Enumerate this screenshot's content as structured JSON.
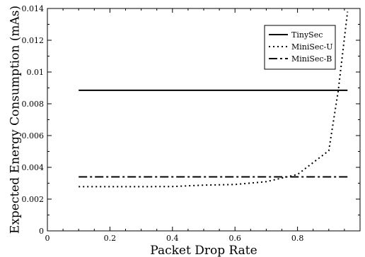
{
  "chart_data": {
    "type": "line",
    "title": "",
    "xlabel": "Packet Drop Rate",
    "ylabel": "Expected Energy Consumption (mAs)",
    "xlim": [
      0,
      1
    ],
    "ylim": [
      0,
      0.014
    ],
    "x_ticks": [
      0,
      0.2,
      0.4,
      0.6,
      0.8
    ],
    "x_tick_labels": [
      "0",
      "0.2",
      "0.4",
      "0.6",
      "0.8"
    ],
    "y_ticks": [
      0,
      0.002,
      0.004,
      0.006,
      0.008,
      0.01,
      0.012,
      0.014
    ],
    "y_tick_labels": [
      "0",
      "0.002",
      "0.004",
      "0.006",
      "0.008",
      "0.01",
      "0.012",
      "0.014"
    ],
    "grid": false,
    "legend_position": "top-right",
    "series": [
      {
        "name": "TinySec",
        "style": "solid",
        "x": [
          0.1,
          0.96
        ],
        "y": [
          0.00885,
          0.00885
        ]
      },
      {
        "name": "MiniSec-U",
        "style": "dotted",
        "x": [
          0.1,
          0.2,
          0.3,
          0.4,
          0.5,
          0.6,
          0.7,
          0.8,
          0.9,
          0.93,
          0.96
        ],
        "y": [
          0.00278,
          0.00278,
          0.00278,
          0.00279,
          0.00288,
          0.00292,
          0.0031,
          0.00355,
          0.00505,
          0.0088,
          0.0138
        ]
      },
      {
        "name": "MiniSec-B",
        "style": "dashdot",
        "x": [
          0.1,
          0.96
        ],
        "y": [
          0.0034,
          0.0034
        ]
      }
    ]
  }
}
